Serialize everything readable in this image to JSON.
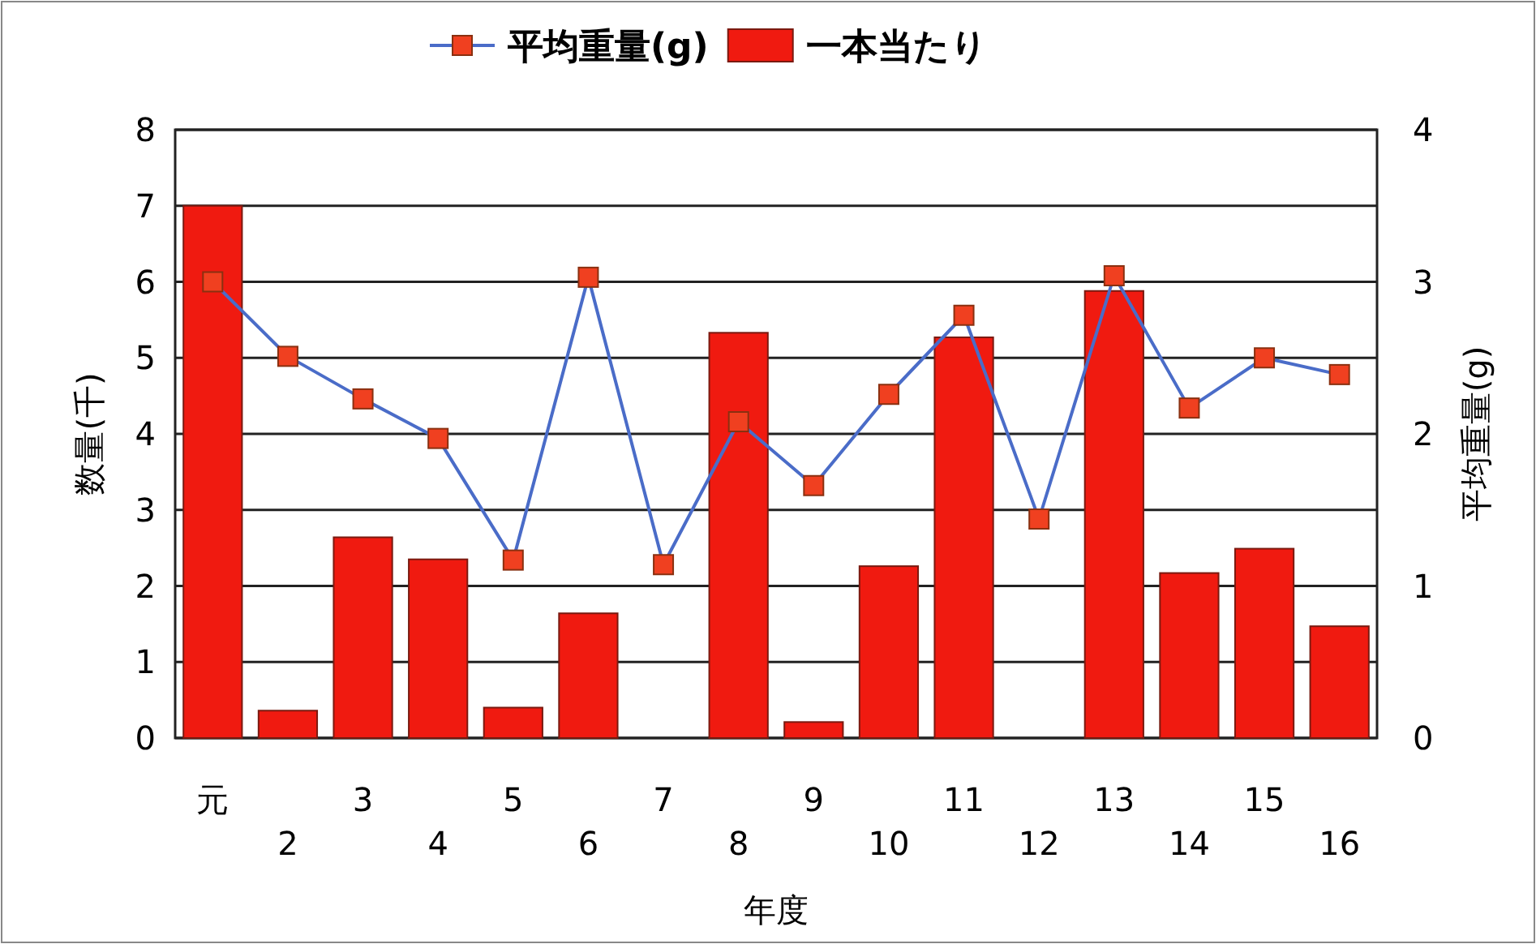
{
  "chart_data": {
    "type": "bar",
    "xlabel": "年度",
    "ylabel": "数量(千)",
    "y2label": "平均重量(g)",
    "categories": [
      "元",
      "2",
      "3",
      "4",
      "5",
      "6",
      "7",
      "8",
      "9",
      "10",
      "11",
      "12",
      "13",
      "14",
      "15",
      "16"
    ],
    "series": [
      {
        "name": "平均重量(g)",
        "type": "line",
        "axis": "y2",
        "color": "#4a6cc8",
        "marker": "square",
        "values": [
          3.0,
          2.51,
          2.23,
          1.97,
          1.17,
          3.03,
          1.14,
          2.08,
          1.66,
          2.26,
          2.78,
          1.44,
          3.04,
          2.17,
          2.5,
          2.39
        ]
      },
      {
        "name": "一本当たり",
        "color": "#f01a10",
        "values": [
          7.0,
          0.36,
          2.64,
          2.35,
          0.4,
          1.64,
          null,
          5.33,
          0.21,
          2.26,
          5.27,
          null,
          5.88,
          2.17,
          2.49,
          1.47
        ]
      }
    ],
    "ylim": [
      0,
      8
    ],
    "yticks": [
      0,
      1,
      2,
      3,
      4,
      5,
      6,
      7,
      8
    ],
    "y2lim": [
      0,
      4
    ],
    "y2ticks": [
      0,
      1,
      2,
      3,
      4
    ],
    "grid": "y",
    "legend": "top"
  }
}
